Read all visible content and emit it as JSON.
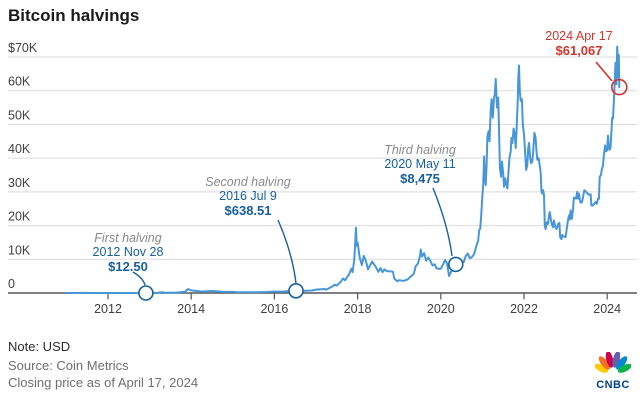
{
  "title": "Bitcoin halvings",
  "footer": {
    "note": "Note: USD",
    "source": "Source: Coin Metrics",
    "as_of": "Closing price as of April 17, 2024"
  },
  "logo": {
    "text": "CNBC"
  },
  "colors": {
    "line": "#4796d8",
    "annotation_blue": "#17609e",
    "annotation_red": "#d0342c",
    "grid": "#dcdcdc",
    "axis": "#55565a",
    "label_gray": "#8a8a8a"
  },
  "chart_data": {
    "type": "line",
    "title": "Bitcoin halvings",
    "unit": "USD",
    "grid": "horizontal",
    "legend": false,
    "x_axis": {
      "ticks": [
        2012,
        2014,
        2016,
        2018,
        2020,
        2022,
        2024
      ],
      "range": [
        2011,
        2024.4
      ]
    },
    "y_axis": {
      "range": [
        0,
        70000
      ],
      "ticks": [
        {
          "v": 70000,
          "label": "$70K"
        },
        {
          "v": 60000,
          "label": "60K"
        },
        {
          "v": 50000,
          "label": "50K"
        },
        {
          "v": 40000,
          "label": "40K"
        },
        {
          "v": 30000,
          "label": "30K"
        },
        {
          "v": 20000,
          "label": "20K"
        },
        {
          "v": 10000,
          "label": "10K"
        },
        {
          "v": 0,
          "label": "0"
        }
      ]
    },
    "series": [
      {
        "name": "Bitcoin closing price (USD)",
        "points": [
          [
            2011.0,
            0.3
          ],
          [
            2011.45,
            30
          ],
          [
            2011.6,
            10
          ],
          [
            2012.0,
            5
          ],
          [
            2012.5,
            7
          ],
          [
            2012.91,
            12.5
          ],
          [
            2013.2,
            100
          ],
          [
            2013.3,
            230
          ],
          [
            2013.35,
            80
          ],
          [
            2013.6,
            100
          ],
          [
            2013.85,
            400
          ],
          [
            2013.92,
            1150
          ],
          [
            2014.0,
            770
          ],
          [
            2014.1,
            620
          ],
          [
            2014.25,
            450
          ],
          [
            2014.5,
            600
          ],
          [
            2014.75,
            380
          ],
          [
            2015.0,
            315
          ],
          [
            2015.1,
            220
          ],
          [
            2015.5,
            230
          ],
          [
            2015.8,
            310
          ],
          [
            2016.0,
            430
          ],
          [
            2016.2,
            420
          ],
          [
            2016.45,
            700
          ],
          [
            2016.52,
            638.51
          ],
          [
            2016.7,
            610
          ],
          [
            2016.9,
            740
          ],
          [
            2017.0,
            1000
          ],
          [
            2017.2,
            1200
          ],
          [
            2017.25,
            1000
          ],
          [
            2017.4,
            2000
          ],
          [
            2017.45,
            2500
          ],
          [
            2017.5,
            2200
          ],
          [
            2017.6,
            3400
          ],
          [
            2017.65,
            4300
          ],
          [
            2017.7,
            3800
          ],
          [
            2017.8,
            5700
          ],
          [
            2017.85,
            7200
          ],
          [
            2017.88,
            6200
          ],
          [
            2017.92,
            10000
          ],
          [
            2017.95,
            16500
          ],
          [
            2017.96,
            19400
          ],
          [
            2017.98,
            14000
          ],
          [
            2018.0,
            15000
          ],
          [
            2018.05,
            10500
          ],
          [
            2018.1,
            8300
          ],
          [
            2018.15,
            11000
          ],
          [
            2018.2,
            9500
          ],
          [
            2018.25,
            7000
          ],
          [
            2018.3,
            8200
          ],
          [
            2018.35,
            9300
          ],
          [
            2018.4,
            8400
          ],
          [
            2018.45,
            7500
          ],
          [
            2018.5,
            6300
          ],
          [
            2018.55,
            7400
          ],
          [
            2018.6,
            6200
          ],
          [
            2018.65,
            7000
          ],
          [
            2018.7,
            6500
          ],
          [
            2018.8,
            6400
          ],
          [
            2018.85,
            6300
          ],
          [
            2018.88,
            4300
          ],
          [
            2018.95,
            3500
          ],
          [
            2019.0,
            3800
          ],
          [
            2019.1,
            3600
          ],
          [
            2019.2,
            4000
          ],
          [
            2019.3,
            5100
          ],
          [
            2019.35,
            5700
          ],
          [
            2019.4,
            8000
          ],
          [
            2019.45,
            8700
          ],
          [
            2019.5,
            11000
          ],
          [
            2019.52,
            12900
          ],
          [
            2019.55,
            10800
          ],
          [
            2019.6,
            11800
          ],
          [
            2019.65,
            9600
          ],
          [
            2019.7,
            10500
          ],
          [
            2019.75,
            9500
          ],
          [
            2019.8,
            8200
          ],
          [
            2019.85,
            8500
          ],
          [
            2019.9,
            7300
          ],
          [
            2019.95,
            7200
          ],
          [
            2020.0,
            7200
          ],
          [
            2020.05,
            8400
          ],
          [
            2020.1,
            9800
          ],
          [
            2020.15,
            8800
          ],
          [
            2020.2,
            5000
          ],
          [
            2020.25,
            6400
          ],
          [
            2020.3,
            6900
          ],
          [
            2020.36,
            8475
          ],
          [
            2020.4,
            9700
          ],
          [
            2020.45,
            8800
          ],
          [
            2020.5,
            9100
          ],
          [
            2020.55,
            9200
          ],
          [
            2020.6,
            11000
          ],
          [
            2020.65,
            11700
          ],
          [
            2020.7,
            10300
          ],
          [
            2020.75,
            10700
          ],
          [
            2020.8,
            11500
          ],
          [
            2020.85,
            13800
          ],
          [
            2020.9,
            15500
          ],
          [
            2020.92,
            18500
          ],
          [
            2020.95,
            19200
          ],
          [
            2020.97,
            23000
          ],
          [
            2021.0,
            29000
          ],
          [
            2021.02,
            32000
          ],
          [
            2021.04,
            40500
          ],
          [
            2021.06,
            34000
          ],
          [
            2021.08,
            32000
          ],
          [
            2021.1,
            38000
          ],
          [
            2021.12,
            46500
          ],
          [
            2021.15,
            48000
          ],
          [
            2021.17,
            45000
          ],
          [
            2021.2,
            54000
          ],
          [
            2021.22,
            57500
          ],
          [
            2021.25,
            52000
          ],
          [
            2021.28,
            58000
          ],
          [
            2021.3,
            59000
          ],
          [
            2021.32,
            63500
          ],
          [
            2021.35,
            55000
          ],
          [
            2021.38,
            58000
          ],
          [
            2021.4,
            49000
          ],
          [
            2021.42,
            37000
          ],
          [
            2021.45,
            34500
          ],
          [
            2021.47,
            39000
          ],
          [
            2021.5,
            35500
          ],
          [
            2021.52,
            31500
          ],
          [
            2021.55,
            34000
          ],
          [
            2021.57,
            32500
          ],
          [
            2021.6,
            31000
          ],
          [
            2021.62,
            34500
          ],
          [
            2021.65,
            40000
          ],
          [
            2021.68,
            42000
          ],
          [
            2021.7,
            46000
          ],
          [
            2021.72,
            44500
          ],
          [
            2021.75,
            48800
          ],
          [
            2021.78,
            47000
          ],
          [
            2021.8,
            43000
          ],
          [
            2021.82,
            48000
          ],
          [
            2021.85,
            57500
          ],
          [
            2021.86,
            63000
          ],
          [
            2021.88,
            67500
          ],
          [
            2021.9,
            60000
          ],
          [
            2021.92,
            57000
          ],
          [
            2021.95,
            57500
          ],
          [
            2021.97,
            50000
          ],
          [
            2022.0,
            47000
          ],
          [
            2022.02,
            43500
          ],
          [
            2022.05,
            36500
          ],
          [
            2022.08,
            38000
          ],
          [
            2022.1,
            43000
          ],
          [
            2022.12,
            44500
          ],
          [
            2022.15,
            40000
          ],
          [
            2022.17,
            38500
          ],
          [
            2022.2,
            39000
          ],
          [
            2022.22,
            42000
          ],
          [
            2022.25,
            47500
          ],
          [
            2022.28,
            46000
          ],
          [
            2022.3,
            42000
          ],
          [
            2022.32,
            39500
          ],
          [
            2022.35,
            40000
          ],
          [
            2022.37,
            38500
          ],
          [
            2022.4,
            36000
          ],
          [
            2022.42,
            30000
          ],
          [
            2022.44,
            29500
          ],
          [
            2022.46,
            30500
          ],
          [
            2022.48,
            29000
          ],
          [
            2022.5,
            20000
          ],
          [
            2022.52,
            19000
          ],
          [
            2022.55,
            21000
          ],
          [
            2022.58,
            20500
          ],
          [
            2022.6,
            23000
          ],
          [
            2022.62,
            24000
          ],
          [
            2022.65,
            21500
          ],
          [
            2022.68,
            20000
          ],
          [
            2022.7,
            19500
          ],
          [
            2022.72,
            21500
          ],
          [
            2022.75,
            19800
          ],
          [
            2022.78,
            19000
          ],
          [
            2022.8,
            19500
          ],
          [
            2022.82,
            20500
          ],
          [
            2022.85,
            20800
          ],
          [
            2022.87,
            16500
          ],
          [
            2022.9,
            16000
          ],
          [
            2022.92,
            17200
          ],
          [
            2022.95,
            16800
          ],
          [
            2023.0,
            16600
          ],
          [
            2023.05,
            21000
          ],
          [
            2023.08,
            23000
          ],
          [
            2023.1,
            21800
          ],
          [
            2023.12,
            24500
          ],
          [
            2023.15,
            22000
          ],
          [
            2023.18,
            25000
          ],
          [
            2023.2,
            28300
          ],
          [
            2023.25,
            28000
          ],
          [
            2023.28,
            30000
          ],
          [
            2023.3,
            28000
          ],
          [
            2023.32,
            29500
          ],
          [
            2023.35,
            27000
          ],
          [
            2023.38,
            26800
          ],
          [
            2023.4,
            27200
          ],
          [
            2023.45,
            30500
          ],
          [
            2023.48,
            30200
          ],
          [
            2023.5,
            29900
          ],
          [
            2023.55,
            29200
          ],
          [
            2023.6,
            29300
          ],
          [
            2023.62,
            26000
          ],
          [
            2023.65,
            25900
          ],
          [
            2023.7,
            26600
          ],
          [
            2023.72,
            27000
          ],
          [
            2023.75,
            26500
          ],
          [
            2023.78,
            28000
          ],
          [
            2023.8,
            27900
          ],
          [
            2023.82,
            34500
          ],
          [
            2023.85,
            35000
          ],
          [
            2023.87,
            36700
          ],
          [
            2023.9,
            37800
          ],
          [
            2023.92,
            41000
          ],
          [
            2023.95,
            43800
          ],
          [
            2023.97,
            42000
          ],
          [
            2024.0,
            42300
          ],
          [
            2024.02,
            46700
          ],
          [
            2024.04,
            43000
          ],
          [
            2024.06,
            42500
          ],
          [
            2024.08,
            43100
          ],
          [
            2024.1,
            47800
          ],
          [
            2024.12,
            52000
          ],
          [
            2024.14,
            51800
          ],
          [
            2024.16,
            57000
          ],
          [
            2024.18,
            62500
          ],
          [
            2024.2,
            68300
          ],
          [
            2024.22,
            61900
          ],
          [
            2024.24,
            73100
          ],
          [
            2024.26,
            68000
          ],
          [
            2024.27,
            64000
          ],
          [
            2024.28,
            70600
          ],
          [
            2024.29,
            61067
          ]
        ]
      }
    ],
    "annotations": [
      {
        "label": "First halving",
        "date": "2012 Nov 28",
        "price": "$12.50",
        "x": 2012.91,
        "y": 12.5,
        "color": "#17609e",
        "highlight": false
      },
      {
        "label": "Second halving",
        "date": "2016 Jul 9",
        "price": "$638.51",
        "x": 2016.52,
        "y": 638.51,
        "color": "#17609e",
        "highlight": false
      },
      {
        "label": "Third halving",
        "date": "2020 May 11",
        "price": "$8,475",
        "x": 2020.36,
        "y": 8475,
        "color": "#17609e",
        "highlight": false
      },
      {
        "label": "",
        "date": "2024 Apr 17",
        "price": "$61,067",
        "x": 2024.29,
        "y": 61067,
        "color": "#d0342c",
        "highlight": true
      }
    ]
  }
}
